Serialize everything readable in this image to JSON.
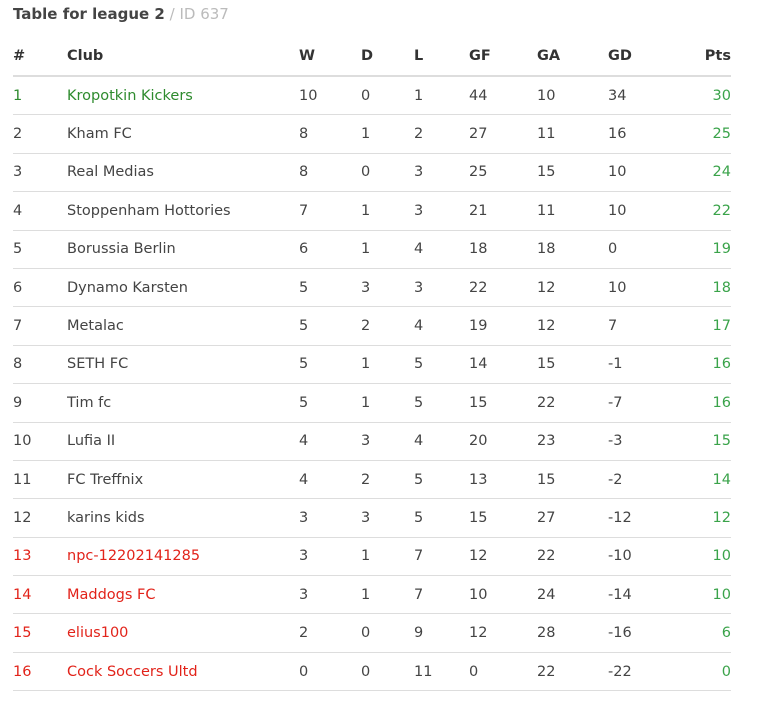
{
  "title": {
    "main": "Table for league 2",
    "separator": "/",
    "id": "ID 637"
  },
  "colors": {
    "promotion": "#2e8b2e",
    "relegation": "#e2231a",
    "points": "#3aa34a"
  },
  "columns": {
    "rank": "#",
    "club": "Club",
    "w": "W",
    "d": "D",
    "l": "L",
    "gf": "GF",
    "ga": "GA",
    "gd": "GD",
    "pts": "Pts"
  },
  "rows": [
    {
      "rank": "1",
      "club": "Kropotkin Kickers",
      "w": "10",
      "d": "0",
      "l": "1",
      "gf": "44",
      "ga": "10",
      "gd": "34",
      "pts": "30",
      "zone": "promo"
    },
    {
      "rank": "2",
      "club": "Kham FC",
      "w": "8",
      "d": "1",
      "l": "2",
      "gf": "27",
      "ga": "11",
      "gd": "16",
      "pts": "25",
      "zone": ""
    },
    {
      "rank": "3",
      "club": "Real Medias",
      "w": "8",
      "d": "0",
      "l": "3",
      "gf": "25",
      "ga": "15",
      "gd": "10",
      "pts": "24",
      "zone": ""
    },
    {
      "rank": "4",
      "club": "Stoppenham Hottories",
      "w": "7",
      "d": "1",
      "l": "3",
      "gf": "21",
      "ga": "11",
      "gd": "10",
      "pts": "22",
      "zone": ""
    },
    {
      "rank": "5",
      "club": "Borussia Berlin",
      "w": "6",
      "d": "1",
      "l": "4",
      "gf": "18",
      "ga": "18",
      "gd": "0",
      "pts": "19",
      "zone": ""
    },
    {
      "rank": "6",
      "club": "Dynamo Karsten",
      "w": "5",
      "d": "3",
      "l": "3",
      "gf": "22",
      "ga": "12",
      "gd": "10",
      "pts": "18",
      "zone": ""
    },
    {
      "rank": "7",
      "club": "Metalac",
      "w": "5",
      "d": "2",
      "l": "4",
      "gf": "19",
      "ga": "12",
      "gd": "7",
      "pts": "17",
      "zone": ""
    },
    {
      "rank": "8",
      "club": "SETH FC",
      "w": "5",
      "d": "1",
      "l": "5",
      "gf": "14",
      "ga": "15",
      "gd": "-1",
      "pts": "16",
      "zone": ""
    },
    {
      "rank": "9",
      "club": "Tim fc",
      "w": "5",
      "d": "1",
      "l": "5",
      "gf": "15",
      "ga": "22",
      "gd": "-7",
      "pts": "16",
      "zone": ""
    },
    {
      "rank": "10",
      "club": "Lufia II",
      "w": "4",
      "d": "3",
      "l": "4",
      "gf": "20",
      "ga": "23",
      "gd": "-3",
      "pts": "15",
      "zone": ""
    },
    {
      "rank": "11",
      "club": "FC Treffnix",
      "w": "4",
      "d": "2",
      "l": "5",
      "gf": "13",
      "ga": "15",
      "gd": "-2",
      "pts": "14",
      "zone": ""
    },
    {
      "rank": "12",
      "club": "karins kids",
      "w": "3",
      "d": "3",
      "l": "5",
      "gf": "15",
      "ga": "27",
      "gd": "-12",
      "pts": "12",
      "zone": ""
    },
    {
      "rank": "13",
      "club": "npc-12202141285",
      "w": "3",
      "d": "1",
      "l": "7",
      "gf": "12",
      "ga": "22",
      "gd": "-10",
      "pts": "10",
      "zone": "releg"
    },
    {
      "rank": "14",
      "club": "Maddogs FC",
      "w": "3",
      "d": "1",
      "l": "7",
      "gf": "10",
      "ga": "24",
      "gd": "-14",
      "pts": "10",
      "zone": "releg"
    },
    {
      "rank": "15",
      "club": "elius100",
      "w": "2",
      "d": "0",
      "l": "9",
      "gf": "12",
      "ga": "28",
      "gd": "-16",
      "pts": "6",
      "zone": "releg"
    },
    {
      "rank": "16",
      "club": "Cock Soccers Ultd",
      "w": "0",
      "d": "0",
      "l": "11",
      "gf": "0",
      "ga": "22",
      "gd": "-22",
      "pts": "0",
      "zone": "releg"
    }
  ]
}
